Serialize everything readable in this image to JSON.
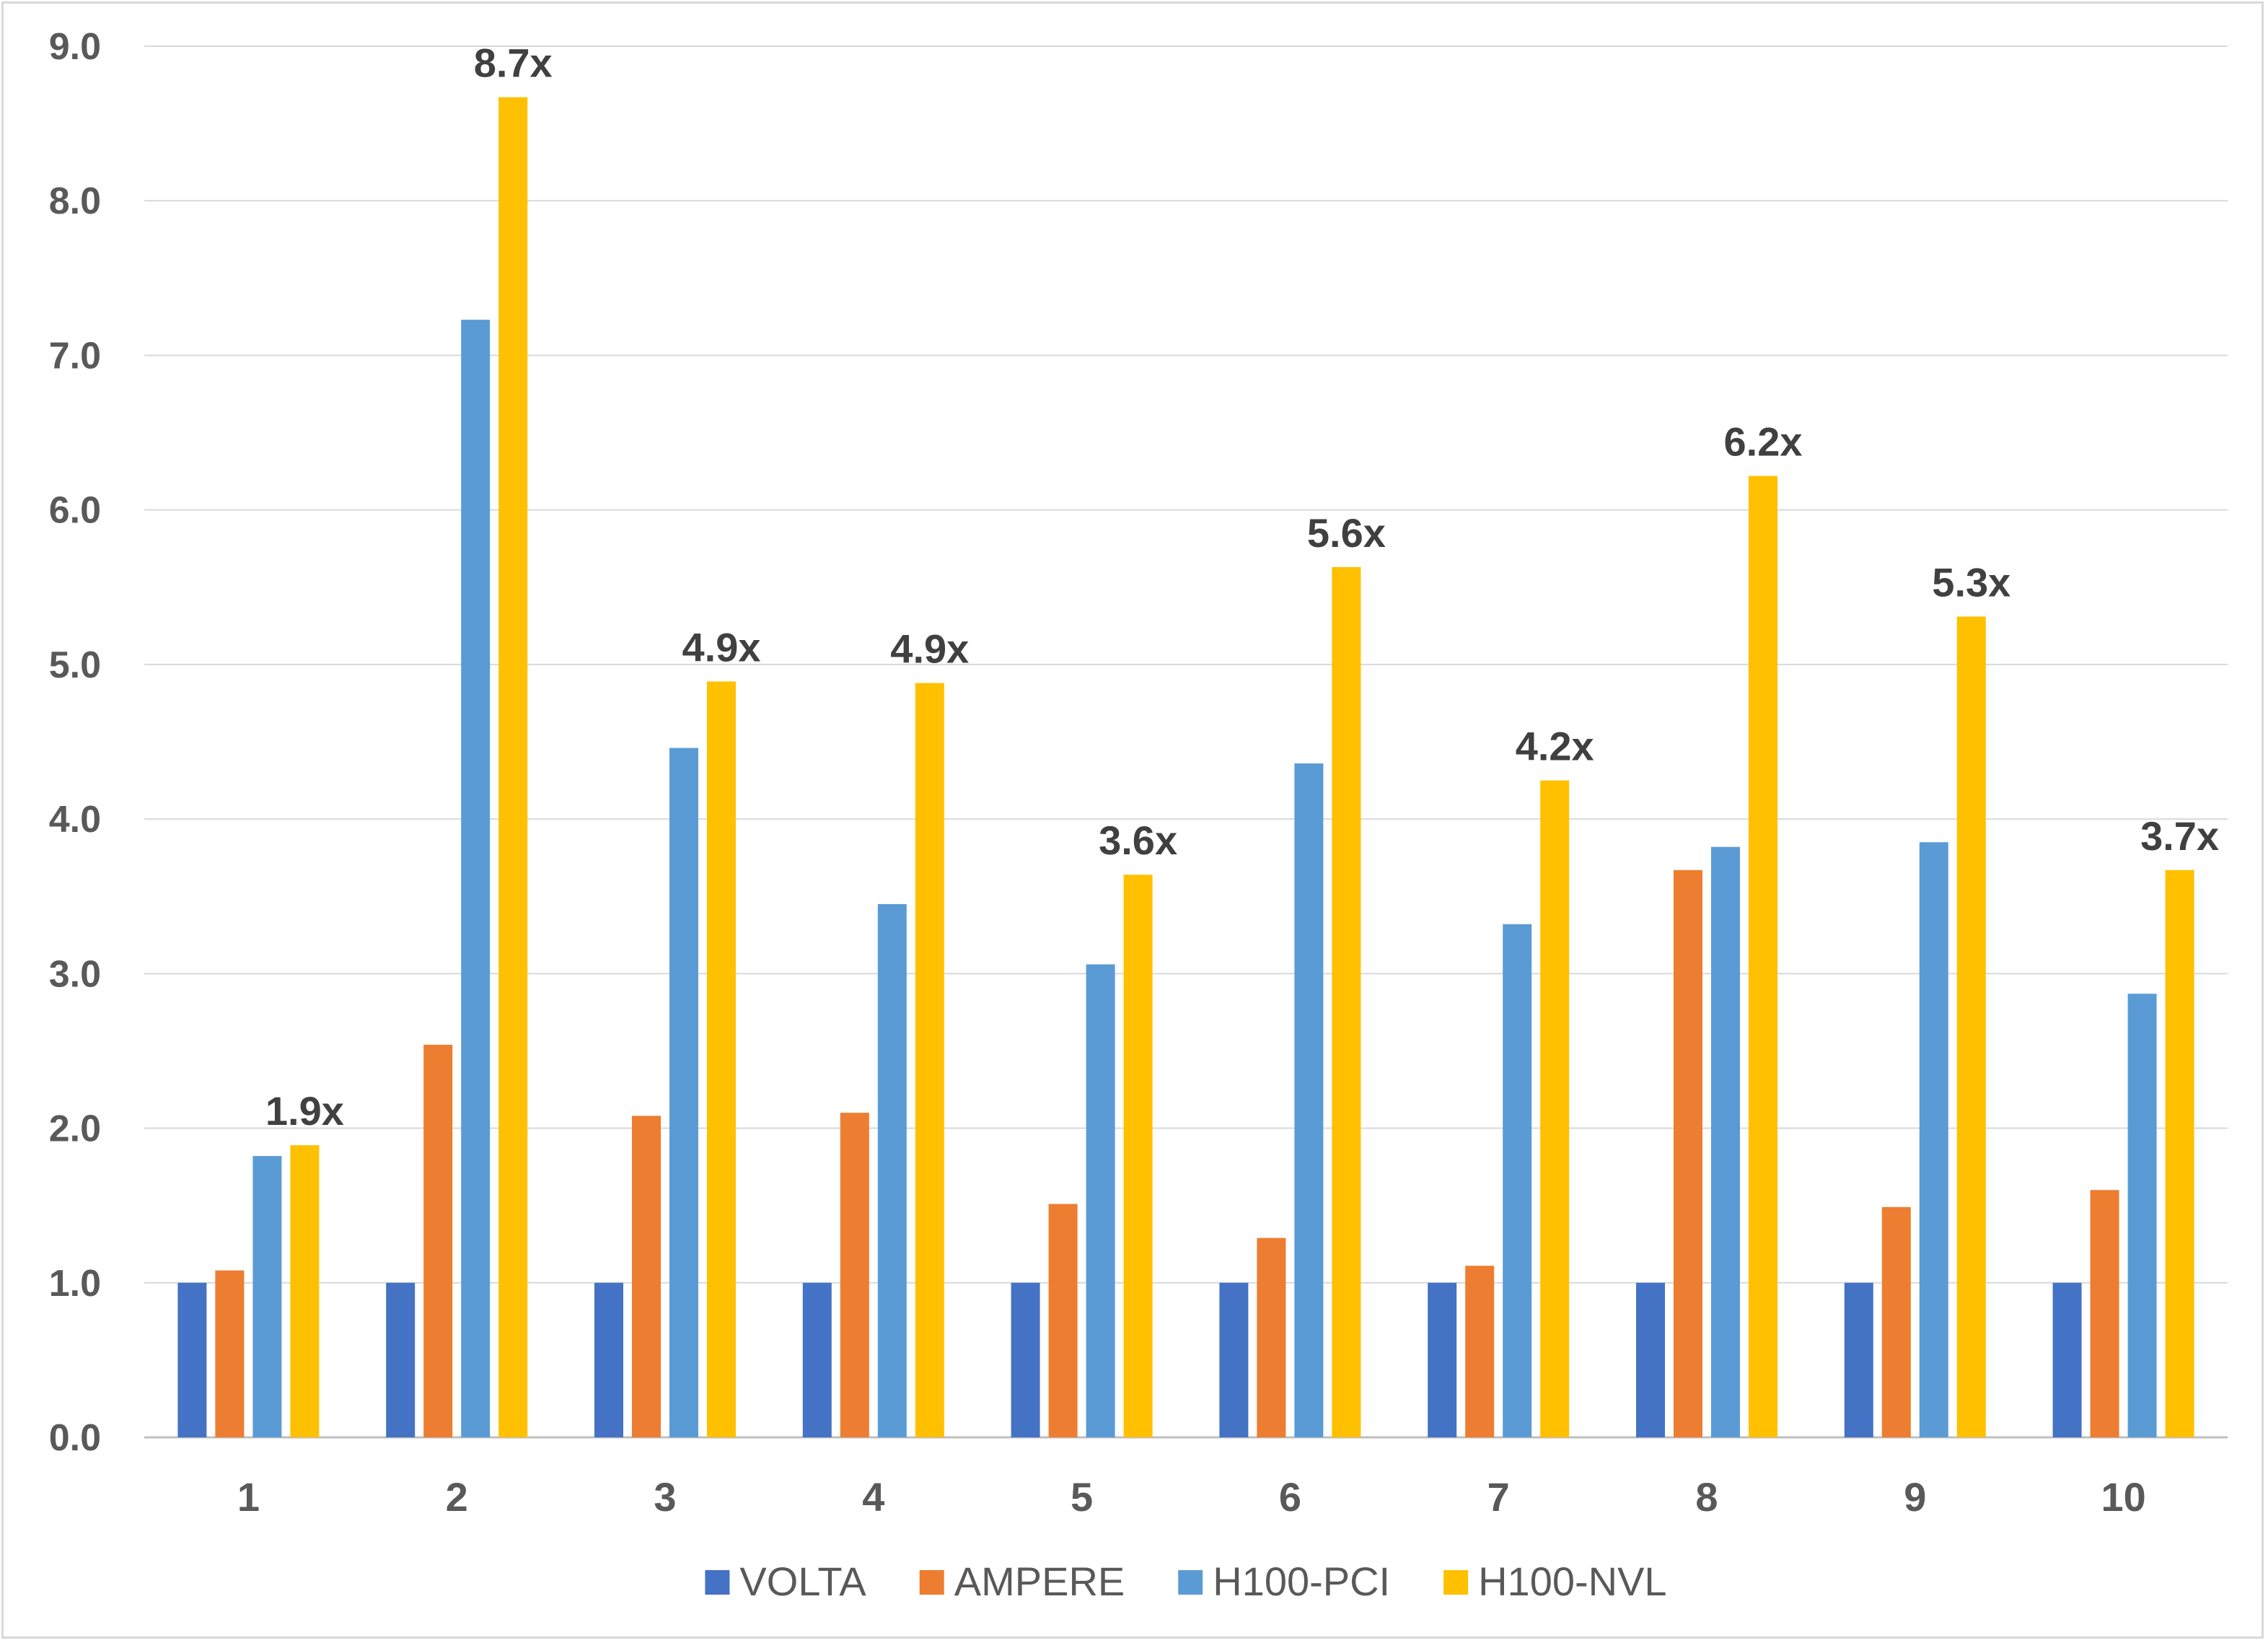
{
  "chart_data": {
    "type": "bar",
    "categories": [
      "1",
      "2",
      "3",
      "4",
      "5",
      "6",
      "7",
      "8",
      "9",
      "10"
    ],
    "series": [
      {
        "name": "VOLTA",
        "color": "#4472c4",
        "values": [
          1.0,
          1.0,
          1.0,
          1.0,
          1.0,
          1.0,
          1.0,
          1.0,
          1.0,
          1.0
        ]
      },
      {
        "name": "AMPERE",
        "color": "#ed7d31",
        "values": [
          1.08,
          2.54,
          2.08,
          2.1,
          1.51,
          1.29,
          1.11,
          3.67,
          1.49,
          1.6
        ]
      },
      {
        "name": "H100-PCI",
        "color": "#5b9bd5",
        "values": [
          1.82,
          7.23,
          4.46,
          3.45,
          3.06,
          4.36,
          3.32,
          3.82,
          3.85,
          2.87
        ]
      },
      {
        "name": "H100-NVL",
        "color": "#ffc000",
        "values": [
          1.89,
          8.67,
          4.89,
          4.88,
          3.64,
          5.63,
          4.25,
          6.22,
          5.31,
          3.67
        ]
      }
    ],
    "data_labels": [
      "1.9x",
      "8.7x",
      "4.9x",
      "4.9x",
      "3.6x",
      "5.6x",
      "4.2x",
      "6.2x",
      "5.3x",
      "3.7x"
    ],
    "yticks": [
      "0.0",
      "1.0",
      "2.0",
      "3.0",
      "4.0",
      "5.0",
      "6.0",
      "7.0",
      "8.0",
      "9.0"
    ],
    "ylim": [
      0,
      9
    ],
    "grid": true,
    "legend_position": "bottom",
    "title": "",
    "xlabel": "",
    "ylabel": ""
  }
}
